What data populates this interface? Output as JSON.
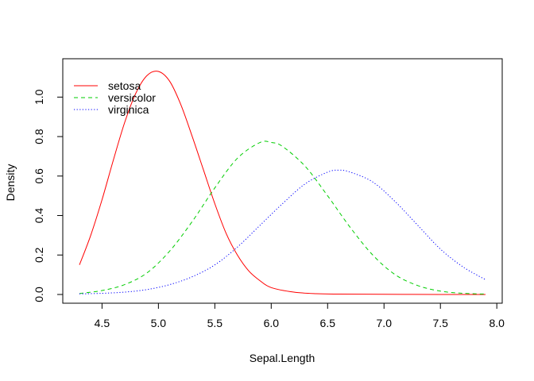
{
  "chart_data": {
    "type": "line",
    "title": "",
    "xlabel": "Sepal.Length",
    "ylabel": "Density",
    "xlim": [
      4.3,
      7.9
    ],
    "ylim": [
      0,
      1.13
    ],
    "x_ticks": [
      4.5,
      5.0,
      5.5,
      6.0,
      6.5,
      7.0,
      7.5,
      8.0
    ],
    "x_tick_labels": [
      "4.5",
      "5.0",
      "5.5",
      "6.0",
      "6.5",
      "7.0",
      "7.5",
      "8.0"
    ],
    "y_ticks": [
      0.0,
      0.2,
      0.4,
      0.6,
      0.8,
      1.0
    ],
    "y_tick_labels": [
      "0.0",
      "0.2",
      "0.4",
      "0.6",
      "0.8",
      "1.0"
    ],
    "grid": false,
    "legend_position": "top-left",
    "series": [
      {
        "name": "setosa",
        "color": "#ff0000",
        "dash": "solid",
        "x": [
          4.3,
          4.4,
          4.5,
          4.6,
          4.7,
          4.8,
          4.9,
          5.0,
          5.1,
          5.2,
          5.3,
          5.4,
          5.5,
          5.6,
          5.7,
          5.8,
          5.9,
          6.0,
          6.2,
          6.4,
          6.6,
          7.0,
          7.5,
          7.9
        ],
        "y": [
          0.15,
          0.3,
          0.48,
          0.68,
          0.87,
          1.02,
          1.11,
          1.13,
          1.08,
          0.96,
          0.8,
          0.63,
          0.46,
          0.31,
          0.2,
          0.12,
          0.07,
          0.035,
          0.012,
          0.004,
          0.002,
          0.001,
          0.0,
          0.0
        ]
      },
      {
        "name": "versicolor",
        "color": "#00cd00",
        "dash": "dashed",
        "x": [
          4.3,
          4.5,
          4.7,
          4.9,
          5.1,
          5.3,
          5.5,
          5.7,
          5.9,
          6.0,
          6.1,
          6.3,
          6.5,
          6.7,
          6.9,
          7.1,
          7.3,
          7.5,
          7.7,
          7.9
        ],
        "y": [
          0.005,
          0.02,
          0.05,
          0.11,
          0.22,
          0.37,
          0.54,
          0.69,
          0.77,
          0.77,
          0.75,
          0.65,
          0.5,
          0.34,
          0.2,
          0.1,
          0.045,
          0.017,
          0.006,
          0.002
        ]
      },
      {
        "name": "virginica",
        "color": "#0000ff",
        "dash": "dotted",
        "x": [
          4.3,
          4.5,
          4.7,
          4.9,
          5.1,
          5.3,
          5.5,
          5.7,
          5.9,
          6.1,
          6.3,
          6.5,
          6.6,
          6.7,
          6.9,
          7.1,
          7.3,
          7.5,
          7.7,
          7.9
        ],
        "y": [
          0.003,
          0.006,
          0.012,
          0.025,
          0.05,
          0.09,
          0.15,
          0.24,
          0.35,
          0.46,
          0.56,
          0.62,
          0.63,
          0.62,
          0.57,
          0.47,
          0.35,
          0.23,
          0.14,
          0.075
        ]
      }
    ]
  }
}
